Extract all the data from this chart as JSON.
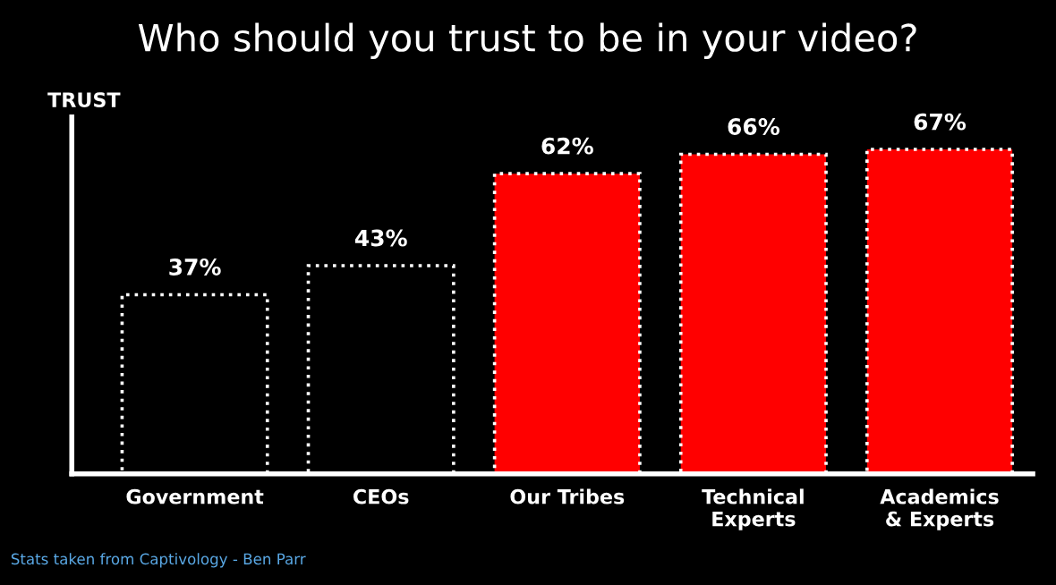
{
  "chart_data": {
    "type": "bar",
    "title": "Who should you trust to be in your video?",
    "ylabel": "TRUST",
    "categories": [
      "Government",
      "CEOs",
      "Our Tribes",
      "Technical\nExperts",
      "Academics\n& Experts"
    ],
    "values": [
      37,
      43,
      62,
      66,
      67
    ],
    "colors": [
      "#000000",
      "#000000",
      "#ff0000",
      "#ff0000",
      "#ff0000"
    ],
    "value_labels": [
      "37%",
      "43%",
      "62%",
      "66%",
      "67%"
    ],
    "annotations": [
      "Stats taken from Captivology - Ben Parr"
    ]
  }
}
